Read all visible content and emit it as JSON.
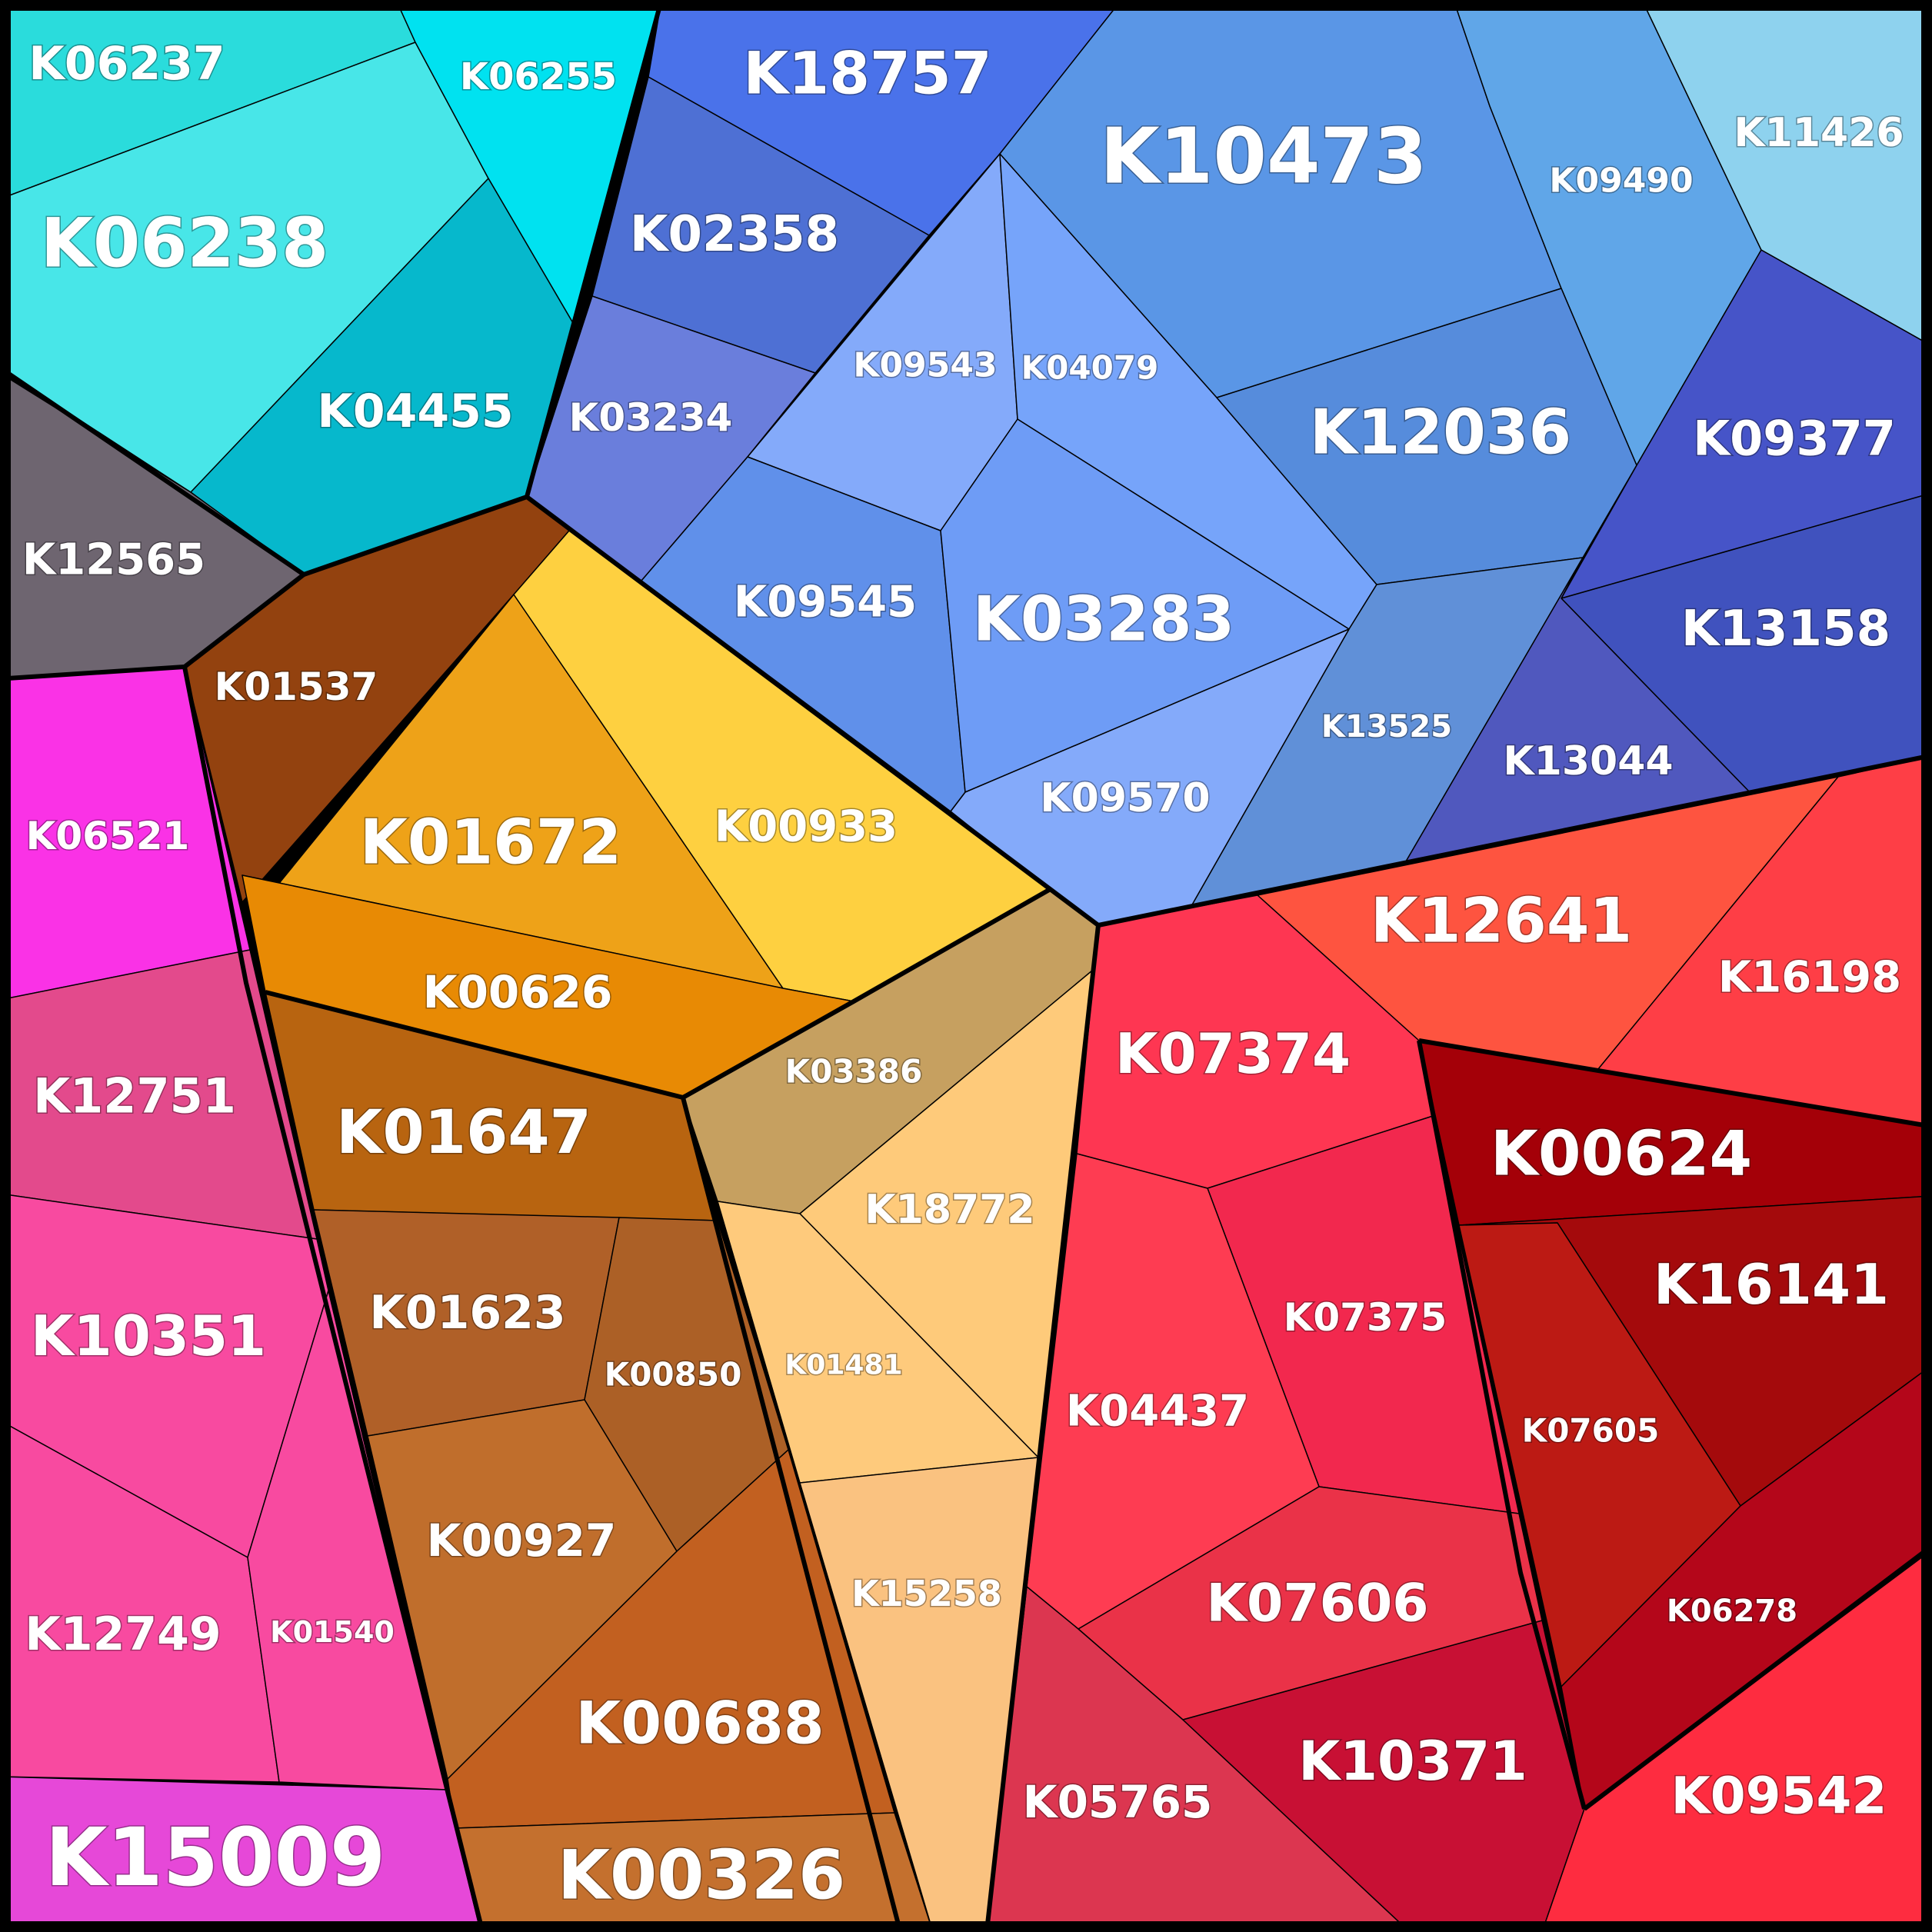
{
  "diagram": {
    "type": "voronoi-treemap",
    "cells": [
      {
        "id": "K06237",
        "color": "#2ADCDC"
      },
      {
        "id": "K06238",
        "color": "#48E6E8"
      },
      {
        "id": "K06255",
        "color": "#00E2F0"
      },
      {
        "id": "K04455",
        "color": "#06B8CC"
      },
      {
        "id": "K12565",
        "color": "#6E6570"
      },
      {
        "id": "K01537",
        "color": "#93420F"
      },
      {
        "id": "K06521",
        "color": "#FA32E6"
      },
      {
        "id": "K12751",
        "color": "#E34A8C"
      },
      {
        "id": "K10351",
        "color": "#F84AA0"
      },
      {
        "id": "K12749",
        "color": "#F84AA0"
      },
      {
        "id": "K01540",
        "color": "#F84AA0"
      },
      {
        "id": "K15009",
        "color": "#E648D8"
      },
      {
        "id": "K18757",
        "color": "#4A72EA"
      },
      {
        "id": "K02358",
        "color": "#4E70D4"
      },
      {
        "id": "K03234",
        "color": "#6A7EDC"
      },
      {
        "id": "K10473",
        "color": "#5A96E6"
      },
      {
        "id": "K09490",
        "color": "#60A6E8"
      },
      {
        "id": "K11426",
        "color": "#8ED2EE"
      },
      {
        "id": "K09543",
        "color": "#84AAFA"
      },
      {
        "id": "K04079",
        "color": "#76A4FA"
      },
      {
        "id": "K12036",
        "color": "#568CDC"
      },
      {
        "id": "K09377",
        "color": "#4654C8"
      },
      {
        "id": "K09545",
        "color": "#6090EA"
      },
      {
        "id": "K03283",
        "color": "#6E9CF6"
      },
      {
        "id": "K13525",
        "color": "#6090D8"
      },
      {
        "id": "K13158",
        "color": "#4052BE"
      },
      {
        "id": "K13044",
        "color": "#5058BE"
      },
      {
        "id": "K09570",
        "color": "#84AAFA"
      },
      {
        "id": "K01672",
        "color": "#EEA218"
      },
      {
        "id": "K00933",
        "color": "#FED040"
      },
      {
        "id": "K00626",
        "color": "#E88A04"
      },
      {
        "id": "K03386",
        "color": "#C6A060"
      },
      {
        "id": "K01647",
        "color": "#B86410"
      },
      {
        "id": "K18772",
        "color": "#FECA7A"
      },
      {
        "id": "K01623",
        "color": "#B06028"
      },
      {
        "id": "K00850",
        "color": "#AC6026"
      },
      {
        "id": "K01481",
        "color": "#FECA7C"
      },
      {
        "id": "K00927",
        "color": "#C06E2C"
      },
      {
        "id": "K00688",
        "color": "#C26020"
      },
      {
        "id": "K15258",
        "color": "#FAC280"
      },
      {
        "id": "K00326",
        "color": "#C4702E"
      },
      {
        "id": "K12641",
        "color": "#FE5440"
      },
      {
        "id": "K16198",
        "color": "#FE3E46"
      },
      {
        "id": "K07374",
        "color": "#FE3652"
      },
      {
        "id": "K00624",
        "color": "#A40008"
      },
      {
        "id": "K07375",
        "color": "#F2284E"
      },
      {
        "id": "K16141",
        "color": "#A40A0C"
      },
      {
        "id": "K04437",
        "color": "#FE3C52"
      },
      {
        "id": "K07605",
        "color": "#BC1A14"
      },
      {
        "id": "K07606",
        "color": "#EA3248"
      },
      {
        "id": "K06278",
        "color": "#B4061A"
      },
      {
        "id": "K05765",
        "color": "#DC3650"
      },
      {
        "id": "K10371",
        "color": "#C81034"
      },
      {
        "id": "K09542",
        "color": "#FE2C40"
      }
    ]
  }
}
